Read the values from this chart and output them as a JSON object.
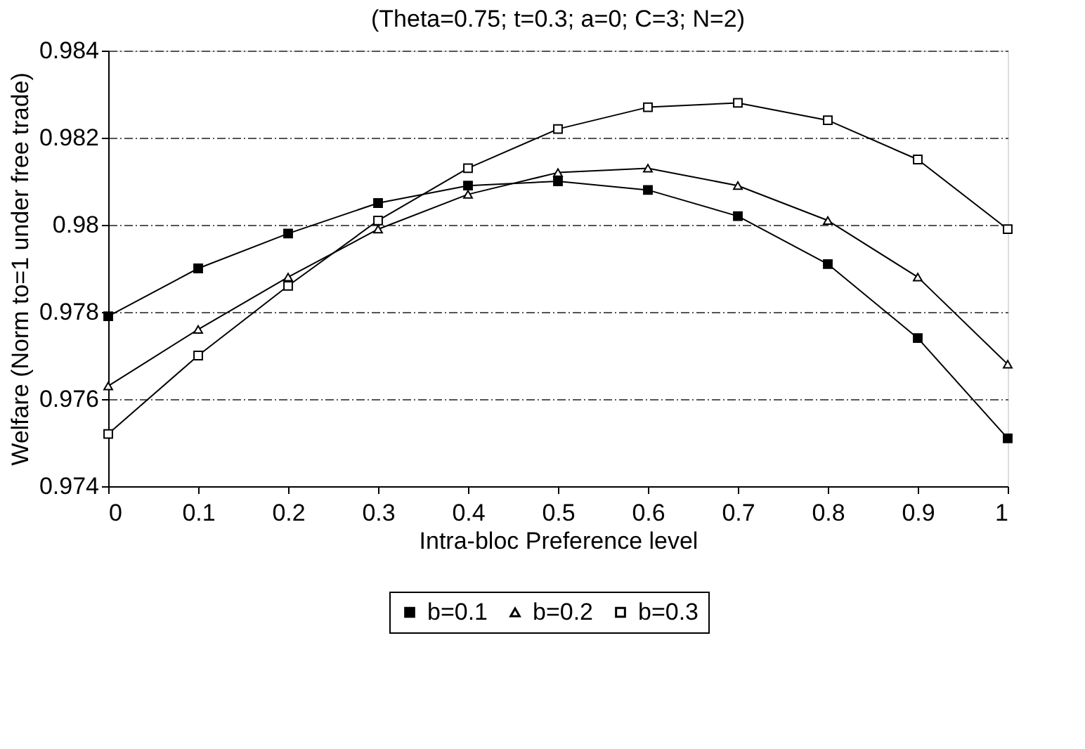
{
  "chart_data": {
    "type": "line",
    "title": "(Theta=0.75; t=0.3; a=0; C=3; N=2)",
    "xlabel": "Intra-bloc Preference level",
    "ylabel": "Welfare (Norm to=1 under free trade)",
    "x": [
      0,
      0.1,
      0.2,
      0.3,
      0.4,
      0.5,
      0.6,
      0.7,
      0.8,
      0.9,
      1
    ],
    "series": [
      {
        "name": "b=0.1",
        "color": "#000000",
        "marker": "square",
        "values": [
          0.9779,
          0.979,
          0.9798,
          0.9805,
          0.9809,
          0.981,
          0.9808,
          0.9802,
          0.9791,
          0.9774,
          0.9751
        ]
      },
      {
        "name": "b=0.2",
        "color": "#000000",
        "marker": "triangle",
        "values": [
          0.9763,
          0.9776,
          0.9788,
          0.9799,
          0.9807,
          0.9812,
          0.9813,
          0.9809,
          0.9801,
          0.9788,
          0.9768
        ]
      },
      {
        "name": "b=0.3",
        "color": "#000000",
        "marker": "square",
        "values": [
          0.9752,
          0.977,
          0.9786,
          0.9801,
          0.9813,
          0.9822,
          0.9827,
          0.9828,
          0.9824,
          0.9815,
          0.9799
        ]
      }
    ],
    "xlim": [
      0,
      1
    ],
    "xticks": [
      0,
      0.1,
      0.2,
      0.3,
      0.4,
      0.5,
      0.6,
      0.7,
      0.8,
      0.9,
      1
    ],
    "ylim": [
      0.974,
      0.984
    ],
    "yticks": [
      0.974,
      0.976,
      0.978,
      0.98,
      0.982,
      0.984
    ],
    "grid": "y",
    "legend": "bottom",
    "line_style": "solid"
  }
}
